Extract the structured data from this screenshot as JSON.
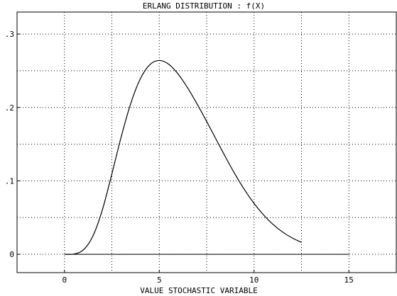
{
  "chart_data": {
    "type": "line",
    "title": "ERLANG DISTRIBUTION : f(X)",
    "xlabel": "VALUE STOCHASTIC VARIABLE",
    "ylabel": "",
    "xlim": [
      -2.5,
      17.5
    ],
    "ylim": [
      -0.025,
      0.33
    ],
    "x_ticks": [
      0,
      5,
      10,
      15
    ],
    "x_tick_labels": [
      "0",
      "5",
      "10",
      "15"
    ],
    "y_ticks": [
      0,
      0.1,
      0.2,
      0.3
    ],
    "y_tick_labels": [
      "0",
      ".1",
      ".2",
      ".3"
    ],
    "grid": true,
    "grid_x": [
      -2.5,
      0,
      2.5,
      5,
      7.5,
      10,
      12.5,
      15
    ],
    "grid_y": [
      0,
      0.05,
      0.1,
      0.15,
      0.2,
      0.25,
      0.3
    ],
    "baseline": {
      "x": [
        0,
        15
      ],
      "y": 0
    },
    "series": [
      {
        "x": [
          0,
          0.5,
          1,
          1.5,
          2,
          2.5,
          3,
          3.5,
          4,
          4.5,
          5,
          5.5,
          6,
          6.5,
          7,
          7.5,
          8,
          8.5,
          9,
          9.5,
          10,
          10.5,
          11,
          11.5,
          12,
          12.5
        ],
        "y": [
          0,
          0.0004,
          0.006,
          0.0249,
          0.0606,
          0.1094,
          0.1607,
          0.2057,
          0.239,
          0.2582,
          0.2641,
          0.2589,
          0.2454,
          0.2265,
          0.2045,
          0.1809,
          0.1565,
          0.1321,
          0.1089,
          0.0878,
          0.0693,
          0.0536,
          0.0407,
          0.0304,
          0.0224,
          0.0163
        ]
      }
    ]
  }
}
